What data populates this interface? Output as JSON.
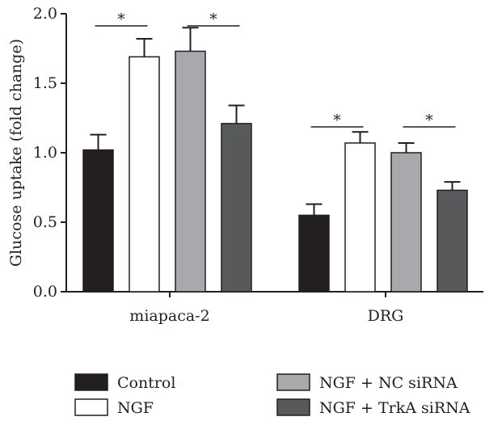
{
  "chart_data": {
    "type": "bar",
    "ylabel": "Glucose uptake (fold change)",
    "ylim": [
      0,
      2.0
    ],
    "yticks": [
      "0.0",
      "0.5",
      "1.0",
      "1.5",
      "2.0"
    ],
    "categories": [
      "miapaca-2",
      "DRG"
    ],
    "series": [
      {
        "name": "Control",
        "color": "#231f20",
        "values": [
          1.02,
          0.55
        ],
        "errors": [
          0.11,
          0.08
        ]
      },
      {
        "name": "NGF",
        "color": "#ffffff",
        "values": [
          1.69,
          1.07
        ],
        "errors": [
          0.13,
          0.08
        ]
      },
      {
        "name": "NGF + NC siRNA",
        "color": "#a7a9ac",
        "values": [
          1.73,
          1.0
        ],
        "errors": [
          0.17,
          0.07
        ]
      },
      {
        "name": "NGF + TrkA siRNA",
        "color": "#58595b",
        "values": [
          1.21,
          0.73
        ],
        "errors": [
          0.13,
          0.06
        ]
      }
    ],
    "significance": [
      {
        "category": "miapaca-2",
        "from": "Control",
        "to": "NGF",
        "label": "*"
      },
      {
        "category": "miapaca-2",
        "from": "NGF + NC siRNA",
        "to": "NGF + TrkA siRNA",
        "label": "*"
      },
      {
        "category": "DRG",
        "from": "Control",
        "to": "NGF",
        "label": "*"
      },
      {
        "category": "DRG",
        "from": "NGF + NC siRNA",
        "to": "NGF + TrkA siRNA",
        "label": "*"
      }
    ],
    "legend_position": "bottom",
    "grid": false
  }
}
